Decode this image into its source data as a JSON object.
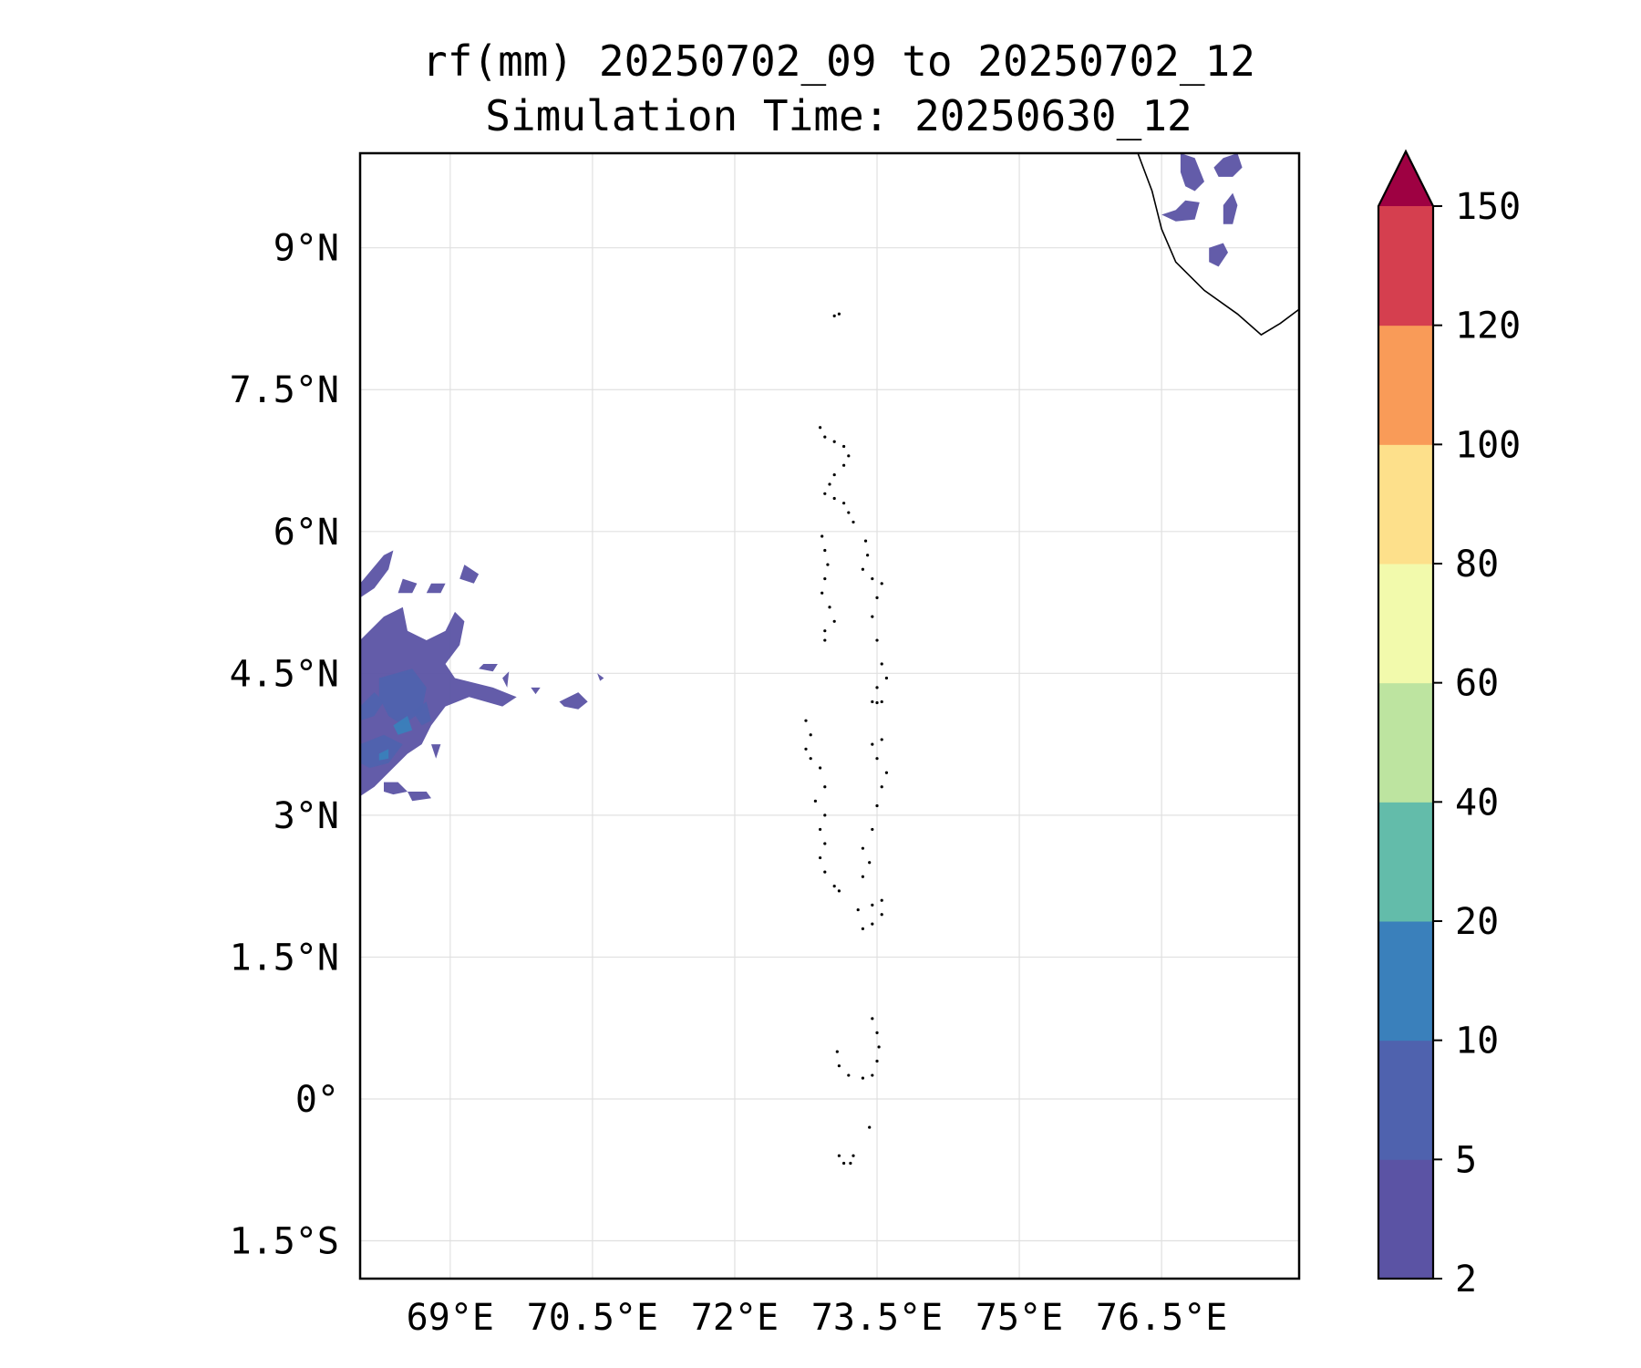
{
  "title": "rf(mm) 20250702_09 to 20250702_12",
  "subtitle": "Simulation Time: 20250630_12",
  "map": {
    "projection": "PlateCarree",
    "lon_range": [
      68.05,
      77.95
    ],
    "lat_range": [
      -1.9,
      10.0
    ],
    "grid": true,
    "x_ticks": [
      {
        "value": 69.0,
        "label": "69°E"
      },
      {
        "value": 70.5,
        "label": "70.5°E"
      },
      {
        "value": 72.0,
        "label": "72°E"
      },
      {
        "value": 73.5,
        "label": "73.5°E"
      },
      {
        "value": 75.0,
        "label": "75°E"
      },
      {
        "value": 76.5,
        "label": "76.5°E"
      }
    ],
    "y_ticks": [
      {
        "value": 9.0,
        "label": "9°N"
      },
      {
        "value": 7.5,
        "label": "7.5°N"
      },
      {
        "value": 6.0,
        "label": "6°N"
      },
      {
        "value": 4.5,
        "label": "4.5°N"
      },
      {
        "value": 3.0,
        "label": "3°N"
      },
      {
        "value": 1.5,
        "label": "1.5°N"
      },
      {
        "value": 0.0,
        "label": "0°"
      },
      {
        "value": -1.5,
        "label": "1.5°S"
      }
    ],
    "coastline_india": [
      [
        76.25,
        10.0
      ],
      [
        76.4,
        9.6
      ],
      [
        76.5,
        9.2
      ],
      [
        76.65,
        8.85
      ],
      [
        76.95,
        8.55
      ],
      [
        77.3,
        8.3
      ],
      [
        77.55,
        8.08
      ],
      [
        77.75,
        8.2
      ],
      [
        77.95,
        8.35
      ]
    ],
    "island_chains": [
      {
        "name_hint": "minicoy",
        "points": [
          [
            73.05,
            8.28
          ],
          [
            73.1,
            8.3
          ]
        ]
      },
      {
        "name_hint": "maldives-north",
        "points": [
          [
            72.9,
            7.1
          ],
          [
            72.95,
            7.0
          ],
          [
            73.05,
            6.95
          ],
          [
            73.15,
            6.9
          ],
          [
            73.2,
            6.8
          ],
          [
            73.15,
            6.7
          ],
          [
            73.05,
            6.6
          ],
          [
            73.0,
            6.5
          ],
          [
            72.95,
            6.4
          ],
          [
            73.05,
            6.35
          ],
          [
            73.15,
            6.3
          ],
          [
            73.2,
            6.2
          ],
          [
            73.25,
            6.1
          ]
        ]
      },
      {
        "name_hint": "maldives-west-upper",
        "points": [
          [
            72.92,
            5.95
          ],
          [
            72.95,
            5.8
          ],
          [
            72.98,
            5.65
          ],
          [
            72.95,
            5.5
          ],
          [
            72.92,
            5.35
          ],
          [
            73.0,
            5.2
          ],
          [
            73.05,
            5.05
          ],
          [
            72.95,
            4.95
          ],
          [
            72.95,
            4.85
          ]
        ]
      },
      {
        "name_hint": "maldives-east-upper",
        "points": [
          [
            73.38,
            5.9
          ],
          [
            73.4,
            5.75
          ],
          [
            73.35,
            5.6
          ],
          [
            73.45,
            5.5
          ],
          [
            73.55,
            5.45
          ],
          [
            73.5,
            5.3
          ],
          [
            73.45,
            5.1
          ],
          [
            73.5,
            4.85
          ],
          [
            73.55,
            4.6
          ],
          [
            73.6,
            4.45
          ],
          [
            73.5,
            4.35
          ]
        ]
      },
      {
        "name_hint": "male",
        "points": [
          [
            73.45,
            4.2
          ],
          [
            73.5,
            4.19
          ],
          [
            73.55,
            4.2
          ]
        ]
      },
      {
        "name_hint": "maldives-west-mid",
        "points": [
          [
            72.75,
            4.0
          ],
          [
            72.8,
            3.85
          ],
          [
            72.75,
            3.7
          ],
          [
            72.8,
            3.6
          ],
          [
            72.9,
            3.5
          ],
          [
            72.95,
            3.3
          ],
          [
            72.85,
            3.15
          ],
          [
            72.95,
            3.0
          ],
          [
            72.9,
            2.85
          ],
          [
            72.95,
            2.7
          ],
          [
            72.9,
            2.55
          ],
          [
            72.95,
            2.4
          ],
          [
            73.05,
            2.25
          ],
          [
            73.1,
            2.2
          ]
        ]
      },
      {
        "name_hint": "maldives-east-mid",
        "points": [
          [
            73.55,
            3.8
          ],
          [
            73.45,
            3.75
          ],
          [
            73.5,
            3.6
          ],
          [
            73.6,
            3.45
          ],
          [
            73.55,
            3.3
          ],
          [
            73.5,
            3.1
          ],
          [
            73.45,
            2.85
          ],
          [
            73.35,
            2.65
          ],
          [
            73.42,
            2.5
          ],
          [
            73.35,
            2.35
          ]
        ]
      },
      {
        "name_hint": "maldives-south-mid",
        "points": [
          [
            73.3,
            2.0
          ],
          [
            73.45,
            2.05
          ],
          [
            73.55,
            2.1
          ],
          [
            73.55,
            1.95
          ],
          [
            73.45,
            1.85
          ],
          [
            73.35,
            1.8
          ]
        ]
      },
      {
        "name_hint": "huvadhu",
        "points": [
          [
            73.45,
            0.85
          ],
          [
            73.5,
            0.7
          ],
          [
            73.52,
            0.55
          ],
          [
            73.5,
            0.4
          ],
          [
            73.45,
            0.25
          ],
          [
            73.35,
            0.22
          ],
          [
            73.2,
            0.25
          ],
          [
            73.1,
            0.35
          ],
          [
            73.08,
            0.5
          ]
        ]
      },
      {
        "name_hint": "fuvahmulah",
        "points": [
          [
            73.42,
            -0.3
          ]
        ]
      },
      {
        "name_hint": "addu",
        "points": [
          [
            73.1,
            -0.6
          ],
          [
            73.15,
            -0.68
          ],
          [
            73.22,
            -0.68
          ],
          [
            73.25,
            -0.6
          ]
        ]
      }
    ],
    "rain_patches": [
      {
        "level": "2-5",
        "points": [
          [
            68.05,
            5.45
          ],
          [
            68.3,
            5.75
          ],
          [
            68.4,
            5.8
          ],
          [
            68.35,
            5.6
          ],
          [
            68.2,
            5.4
          ],
          [
            68.05,
            5.3
          ]
        ]
      },
      {
        "level": "2-5",
        "points": [
          [
            68.5,
            5.5
          ],
          [
            68.65,
            5.45
          ],
          [
            68.6,
            5.35
          ],
          [
            68.45,
            5.35
          ]
        ]
      },
      {
        "level": "2-5",
        "points": [
          [
            68.8,
            5.45
          ],
          [
            68.95,
            5.45
          ],
          [
            68.9,
            5.35
          ],
          [
            68.75,
            5.35
          ]
        ]
      },
      {
        "level": "2-5",
        "points": [
          [
            69.15,
            5.65
          ],
          [
            69.3,
            5.55
          ],
          [
            69.25,
            5.45
          ],
          [
            69.1,
            5.5
          ]
        ]
      },
      {
        "level": "2-5",
        "points": [
          [
            68.05,
            4.85
          ],
          [
            68.3,
            5.1
          ],
          [
            68.5,
            5.2
          ],
          [
            68.55,
            4.95
          ],
          [
            68.75,
            4.85
          ],
          [
            68.95,
            4.95
          ],
          [
            69.05,
            5.15
          ],
          [
            69.15,
            5.05
          ],
          [
            69.1,
            4.8
          ],
          [
            68.95,
            4.6
          ],
          [
            69.05,
            4.45
          ],
          [
            69.45,
            4.35
          ],
          [
            69.7,
            4.25
          ],
          [
            69.55,
            4.15
          ],
          [
            69.2,
            4.25
          ],
          [
            68.95,
            4.15
          ],
          [
            68.8,
            3.95
          ],
          [
            68.7,
            3.75
          ],
          [
            68.55,
            3.65
          ],
          [
            68.4,
            3.5
          ],
          [
            68.2,
            3.3
          ],
          [
            68.05,
            3.2
          ]
        ]
      },
      {
        "level": "2-5",
        "points": [
          [
            68.3,
            3.35
          ],
          [
            68.45,
            3.35
          ],
          [
            68.55,
            3.25
          ],
          [
            68.4,
            3.22
          ],
          [
            68.3,
            3.25
          ]
        ]
      },
      {
        "level": "2-5",
        "points": [
          [
            68.55,
            3.25
          ],
          [
            68.75,
            3.25
          ],
          [
            68.8,
            3.18
          ],
          [
            68.6,
            3.15
          ]
        ]
      },
      {
        "level": "2-5",
        "points": [
          [
            68.8,
            3.75
          ],
          [
            68.9,
            3.75
          ],
          [
            68.85,
            3.6
          ]
        ]
      },
      {
        "level": "2-5",
        "points": [
          [
            69.35,
            4.6
          ],
          [
            69.5,
            4.6
          ],
          [
            69.45,
            4.52
          ],
          [
            69.3,
            4.55
          ]
        ]
      },
      {
        "level": "2-5",
        "points": [
          [
            69.55,
            4.45
          ],
          [
            69.62,
            4.52
          ],
          [
            69.6,
            4.35
          ]
        ]
      },
      {
        "level": "2-5",
        "points": [
          [
            70.15,
            4.2
          ],
          [
            70.35,
            4.3
          ],
          [
            70.45,
            4.2
          ],
          [
            70.35,
            4.12
          ],
          [
            70.2,
            4.15
          ]
        ]
      },
      {
        "level": "2-5",
        "points": [
          [
            69.85,
            4.35
          ],
          [
            69.95,
            4.35
          ],
          [
            69.9,
            4.28
          ]
        ]
      },
      {
        "level": "2-5",
        "points": [
          [
            70.55,
            4.5
          ],
          [
            70.62,
            4.45
          ],
          [
            70.58,
            4.42
          ]
        ]
      },
      {
        "level": "5-10",
        "points": [
          [
            68.25,
            4.45
          ],
          [
            68.6,
            4.55
          ],
          [
            68.75,
            4.35
          ],
          [
            68.7,
            4.1
          ],
          [
            68.5,
            3.95
          ],
          [
            68.35,
            4.05
          ],
          [
            68.25,
            4.25
          ]
        ]
      },
      {
        "level": "5-10",
        "points": [
          [
            68.05,
            3.75
          ],
          [
            68.3,
            3.85
          ],
          [
            68.5,
            3.75
          ],
          [
            68.35,
            3.55
          ],
          [
            68.15,
            3.5
          ],
          [
            68.05,
            3.55
          ]
        ]
      },
      {
        "level": "5-10",
        "points": [
          [
            68.6,
            4.1
          ],
          [
            68.75,
            4.2
          ],
          [
            68.8,
            4.0
          ],
          [
            68.7,
            3.95
          ]
        ]
      },
      {
        "level": "5-10",
        "points": [
          [
            68.05,
            4.15
          ],
          [
            68.2,
            4.3
          ],
          [
            68.3,
            4.2
          ],
          [
            68.2,
            4.05
          ],
          [
            68.05,
            4.0
          ]
        ]
      },
      {
        "level": "10-20",
        "points": [
          [
            68.4,
            3.95
          ],
          [
            68.55,
            4.05
          ],
          [
            68.6,
            3.9
          ],
          [
            68.45,
            3.85
          ]
        ]
      },
      {
        "level": "10-20",
        "points": [
          [
            68.25,
            3.65
          ],
          [
            68.35,
            3.7
          ],
          [
            68.35,
            3.6
          ],
          [
            68.25,
            3.58
          ]
        ]
      },
      {
        "level": "2-5",
        "points": [
          [
            77.05,
            9.85
          ],
          [
            77.15,
            9.95
          ],
          [
            77.3,
            10.0
          ],
          [
            77.35,
            9.85
          ],
          [
            77.25,
            9.75
          ],
          [
            77.1,
            9.75
          ]
        ]
      },
      {
        "level": "2-5",
        "points": [
          [
            76.7,
            10.0
          ],
          [
            76.85,
            9.95
          ],
          [
            76.95,
            9.7
          ],
          [
            76.85,
            9.6
          ],
          [
            76.75,
            9.65
          ],
          [
            76.7,
            9.8
          ]
        ]
      },
      {
        "level": "2-5",
        "points": [
          [
            76.5,
            9.35
          ],
          [
            76.65,
            9.4
          ],
          [
            76.75,
            9.5
          ],
          [
            76.9,
            9.48
          ],
          [
            76.85,
            9.3
          ],
          [
            76.65,
            9.28
          ]
        ]
      },
      {
        "level": "2-5",
        "points": [
          [
            77.15,
            9.45
          ],
          [
            77.25,
            9.58
          ],
          [
            77.3,
            9.45
          ],
          [
            77.25,
            9.25
          ],
          [
            77.15,
            9.25
          ]
        ]
      },
      {
        "level": "2-5",
        "points": [
          [
            77.0,
            9.0
          ],
          [
            77.15,
            9.05
          ],
          [
            77.2,
            8.95
          ],
          [
            77.1,
            8.8
          ],
          [
            77.0,
            8.85
          ]
        ]
      }
    ]
  },
  "colorbar": {
    "label_values": [
      "2",
      "5",
      "10",
      "20",
      "40",
      "60",
      "80",
      "100",
      "120",
      "150"
    ],
    "bands": [
      {
        "range": "2-5",
        "color": "#5b53a4"
      },
      {
        "range": "5-10",
        "color": "#4f62ae"
      },
      {
        "range": "10-20",
        "color": "#3a80bb"
      },
      {
        "range": "20-40",
        "color": "#63bcaa"
      },
      {
        "range": "40-60",
        "color": "#bde4a0"
      },
      {
        "range": "60-80",
        "color": "#f2faac"
      },
      {
        "range": "80-100",
        "color": "#fde08b"
      },
      {
        "range": "100-120",
        "color": "#f99b58"
      },
      {
        "range": "120-150",
        "color": "#d53f4f"
      }
    ],
    "extend_color": "#9e0142"
  },
  "colors": {
    "rain_level_colors": {
      "2-5": "#5b53a4",
      "5-10": "#4f62ae",
      "10-20": "#3a80bb"
    },
    "grid": "#e0e0e0",
    "coastline": "#000000"
  }
}
